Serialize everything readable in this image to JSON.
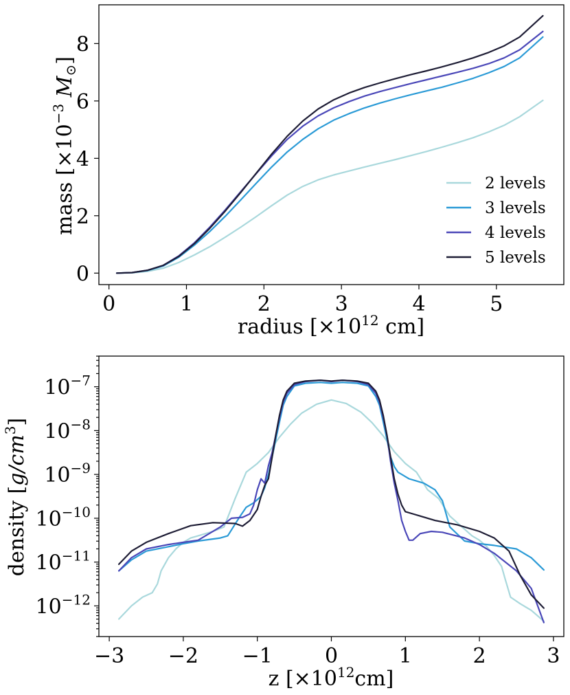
{
  "chart_data": [
    {
      "type": "line",
      "id": "mass-panel",
      "xlabel": "radius [×10",
      "xlabel_sup": "12",
      "xlabel_tail": " cm]",
      "ylabel": "mass [×10",
      "ylabel_sup": "−3",
      "ylabel_tail": " M",
      "ylabel_sub": "⊙",
      "ylabel_close": "]",
      "xlim": [
        -0.13,
        5.87
      ],
      "ylim": [
        -0.4,
        9.35
      ],
      "xticks": [
        0,
        1,
        2,
        3,
        4,
        5
      ],
      "xtick_labels": [
        "0",
        "1",
        "2",
        "3",
        "4",
        "5"
      ],
      "yticks": [
        0,
        2,
        4,
        6,
        8
      ],
      "ytick_labels": [
        "0",
        "2",
        "4",
        "6",
        "8"
      ],
      "legend_position": "lower-right",
      "series": [
        {
          "name": "2 levels",
          "color": "#a9d8dc",
          "x": [
            0.1,
            0.3,
            0.5,
            0.7,
            0.9,
            1.1,
            1.3,
            1.5,
            1.7,
            1.9,
            2.1,
            2.3,
            2.5,
            2.7,
            2.9,
            3.1,
            3.3,
            3.5,
            3.7,
            3.9,
            4.1,
            4.3,
            4.5,
            4.7,
            4.9,
            5.1,
            5.3,
            5.6
          ],
          "values": [
            0,
            0.01,
            0.06,
            0.17,
            0.37,
            0.63,
            0.92,
            1.25,
            1.6,
            1.97,
            2.35,
            2.72,
            3.02,
            3.25,
            3.42,
            3.56,
            3.7,
            3.83,
            3.96,
            4.1,
            4.24,
            4.39,
            4.55,
            4.72,
            4.92,
            5.15,
            5.45,
            6.02
          ]
        },
        {
          "name": "3 levels",
          "color": "#2a9ad6",
          "x": [
            0.1,
            0.3,
            0.5,
            0.7,
            0.9,
            1.1,
            1.3,
            1.5,
            1.7,
            1.9,
            2.1,
            2.3,
            2.5,
            2.7,
            2.9,
            3.1,
            3.3,
            3.5,
            3.7,
            3.9,
            4.1,
            4.3,
            4.5,
            4.7,
            4.9,
            5.1,
            5.3,
            5.6
          ],
          "values": [
            0,
            0.02,
            0.09,
            0.25,
            0.55,
            0.97,
            1.45,
            1.98,
            2.55,
            3.13,
            3.7,
            4.22,
            4.66,
            5.03,
            5.33,
            5.56,
            5.76,
            5.93,
            6.08,
            6.22,
            6.35,
            6.48,
            6.63,
            6.79,
            6.98,
            7.2,
            7.5,
            8.23
          ]
        },
        {
          "name": "4 levels",
          "color": "#4a47b8",
          "x": [
            0.1,
            0.3,
            0.5,
            0.7,
            0.9,
            1.1,
            1.3,
            1.5,
            1.7,
            1.9,
            2.1,
            2.3,
            2.5,
            2.7,
            2.9,
            3.1,
            3.3,
            3.5,
            3.7,
            3.9,
            4.1,
            4.3,
            4.5,
            4.7,
            4.9,
            5.1,
            5.3,
            5.6
          ],
          "values": [
            0,
            0.02,
            0.1,
            0.27,
            0.6,
            1.05,
            1.6,
            2.2,
            2.84,
            3.47,
            4.09,
            4.66,
            5.12,
            5.48,
            5.76,
            5.98,
            6.17,
            6.33,
            6.47,
            6.61,
            6.74,
            6.87,
            7.0,
            7.14,
            7.3,
            7.5,
            7.78,
            8.42
          ]
        },
        {
          "name": "5 levels",
          "color": "#1e1d35",
          "x": [
            0.1,
            0.3,
            0.5,
            0.7,
            0.9,
            1.1,
            1.3,
            1.5,
            1.7,
            1.9,
            2.1,
            2.3,
            2.5,
            2.7,
            2.9,
            3.1,
            3.3,
            3.5,
            3.7,
            3.9,
            4.1,
            4.3,
            4.5,
            4.7,
            4.9,
            5.1,
            5.3,
            5.6
          ],
          "values": [
            0,
            0.02,
            0.1,
            0.27,
            0.58,
            1.02,
            1.56,
            2.16,
            2.81,
            3.48,
            4.15,
            4.77,
            5.3,
            5.72,
            6.04,
            6.28,
            6.47,
            6.63,
            6.78,
            6.92,
            7.05,
            7.19,
            7.34,
            7.5,
            7.69,
            7.92,
            8.23,
            8.97
          ]
        }
      ]
    },
    {
      "type": "line",
      "id": "density-panel",
      "yscale": "log",
      "xlabel": "z [×10",
      "xlabel_sup": "12",
      "xlabel_tail": "cm]",
      "ylabel": "density [",
      "ylabel_italic": "g/cm",
      "ylabel_sup": "3",
      "ylabel_close": "]",
      "xlim": [
        -3.14,
        3.14
      ],
      "ylim_log10": [
        -12.7,
        -6.3
      ],
      "xticks": [
        -3,
        -2,
        -1,
        0,
        1,
        2,
        3
      ],
      "xtick_labels": [
        "−3",
        "−2",
        "−1",
        "0",
        "1",
        "2",
        "3"
      ],
      "yticks_log10": [
        -12,
        -11,
        -10,
        -9,
        -8,
        -7
      ],
      "ytick_base": "10",
      "ytick_exponents": [
        "−12",
        "−11",
        "−10",
        "−9",
        "−8",
        "−7"
      ],
      "series": [
        {
          "name": "2 levels",
          "color": "#a9d8dc",
          "x": [
            -2.87,
            -2.7,
            -2.55,
            -2.42,
            -2.35,
            -2.3,
            -2.2,
            -2.1,
            -2.0,
            -1.9,
            -1.8,
            -1.6,
            -1.45,
            -1.3,
            -1.15,
            -1.0,
            -0.85,
            -0.7,
            -0.55,
            -0.4,
            -0.2,
            0.0,
            0.2,
            0.4,
            0.55,
            0.7,
            0.85,
            1.0,
            1.15,
            1.3,
            1.45,
            1.6,
            1.8,
            1.9,
            2.0,
            2.1,
            2.2,
            2.3,
            2.35,
            2.42,
            2.55,
            2.7,
            2.87
          ],
          "values": [
            -12.3,
            -12.0,
            -11.8,
            -11.7,
            -11.5,
            -11.2,
            -10.9,
            -10.7,
            -10.55,
            -10.45,
            -10.4,
            -10.3,
            -10.2,
            -9.55,
            -8.95,
            -8.75,
            -8.5,
            -8.15,
            -7.85,
            -7.6,
            -7.4,
            -7.3,
            -7.38,
            -7.58,
            -7.82,
            -8.12,
            -8.48,
            -8.75,
            -8.95,
            -9.35,
            -9.55,
            -9.95,
            -10.25,
            -10.4,
            -10.5,
            -10.65,
            -10.85,
            -11.1,
            -11.4,
            -11.8,
            -11.95,
            -12.1,
            -12.35
          ]
        },
        {
          "name": "3 levels",
          "color": "#2a9ad6",
          "x": [
            -2.87,
            -2.7,
            -2.5,
            -2.2,
            -2.0,
            -1.8,
            -1.5,
            -1.4,
            -1.25,
            -1.15,
            -1.05,
            -0.95,
            -0.9,
            -0.85,
            -0.8,
            -0.75,
            -0.7,
            -0.65,
            -0.6,
            -0.5,
            -0.35,
            -0.15,
            0.0,
            0.15,
            0.35,
            0.5,
            0.6,
            0.65,
            0.7,
            0.75,
            0.8,
            0.85,
            0.9,
            0.95,
            1.0,
            1.05,
            1.15,
            1.25,
            1.4,
            1.5,
            1.6,
            1.8,
            2.0,
            2.2,
            2.5,
            2.7,
            2.87
          ],
          "values": [
            -11.2,
            -10.95,
            -10.75,
            -10.65,
            -10.58,
            -10.52,
            -10.45,
            -10.4,
            -10.0,
            -9.75,
            -9.65,
            -9.5,
            -9.3,
            -9.0,
            -8.6,
            -8.2,
            -7.8,
            -7.42,
            -7.22,
            -6.98,
            -6.92,
            -6.9,
            -6.92,
            -6.9,
            -6.92,
            -6.98,
            -7.22,
            -7.42,
            -7.8,
            -8.2,
            -8.6,
            -8.82,
            -8.95,
            -9.0,
            -9.05,
            -9.1,
            -9.15,
            -9.2,
            -9.35,
            -9.6,
            -10.2,
            -10.52,
            -10.58,
            -10.62,
            -10.7,
            -10.9,
            -11.18
          ]
        },
        {
          "name": "4 levels",
          "color": "#4a47b8",
          "x": [
            -2.87,
            -2.7,
            -2.5,
            -2.2,
            -2.0,
            -1.8,
            -1.5,
            -1.35,
            -1.2,
            -1.1,
            -1.05,
            -1.0,
            -0.95,
            -0.9,
            -0.85,
            -0.8,
            -0.75,
            -0.7,
            -0.65,
            -0.6,
            -0.5,
            -0.35,
            -0.15,
            0.0,
            0.15,
            0.35,
            0.5,
            0.6,
            0.65,
            0.7,
            0.75,
            0.8,
            0.85,
            0.9,
            0.95,
            1.0,
            1.05,
            1.1,
            1.2,
            1.35,
            1.5,
            1.8,
            2.0,
            2.2,
            2.5,
            2.7,
            2.87
          ],
          "values": [
            -11.2,
            -10.9,
            -10.7,
            -10.6,
            -10.55,
            -10.5,
            -10.2,
            -10.0,
            -9.98,
            -9.9,
            -9.7,
            -9.35,
            -9.1,
            -9.2,
            -8.8,
            -8.5,
            -8.1,
            -7.7,
            -7.35,
            -7.15,
            -6.95,
            -6.88,
            -6.85,
            -6.88,
            -6.85,
            -6.88,
            -6.95,
            -7.15,
            -7.35,
            -7.7,
            -8.1,
            -8.7,
            -9.2,
            -9.6,
            -10.05,
            -10.3,
            -10.5,
            -10.5,
            -10.35,
            -10.3,
            -10.32,
            -10.45,
            -10.6,
            -10.8,
            -11.2,
            -11.6,
            -12.38
          ]
        },
        {
          "name": "5 levels",
          "color": "#1e1d35",
          "x": [
            -2.87,
            -2.7,
            -2.5,
            -2.2,
            -1.9,
            -1.6,
            -1.3,
            -1.2,
            -1.1,
            -1.0,
            -0.95,
            -0.9,
            -0.85,
            -0.8,
            -0.75,
            -0.7,
            -0.65,
            -0.6,
            -0.5,
            -0.35,
            -0.15,
            0.0,
            0.15,
            0.35,
            0.5,
            0.6,
            0.65,
            0.7,
            0.75,
            0.8,
            0.85,
            0.9,
            0.95,
            1.0,
            1.1,
            1.2,
            1.4,
            1.7,
            2.0,
            2.2,
            2.4,
            2.55,
            2.7,
            2.87
          ],
          "values": [
            -11.05,
            -10.75,
            -10.55,
            -10.35,
            -10.17,
            -10.1,
            -10.12,
            -10.18,
            -10.05,
            -9.8,
            -9.5,
            -9.25,
            -9.1,
            -8.6,
            -8.1,
            -7.65,
            -7.3,
            -7.1,
            -6.92,
            -6.87,
            -6.85,
            -6.87,
            -6.85,
            -6.87,
            -6.92,
            -7.1,
            -7.3,
            -7.65,
            -8.1,
            -8.6,
            -9.1,
            -9.45,
            -9.7,
            -9.85,
            -9.9,
            -9.95,
            -10.05,
            -10.15,
            -10.3,
            -10.45,
            -10.75,
            -11.3,
            -11.75,
            -12.05
          ]
        }
      ]
    }
  ]
}
